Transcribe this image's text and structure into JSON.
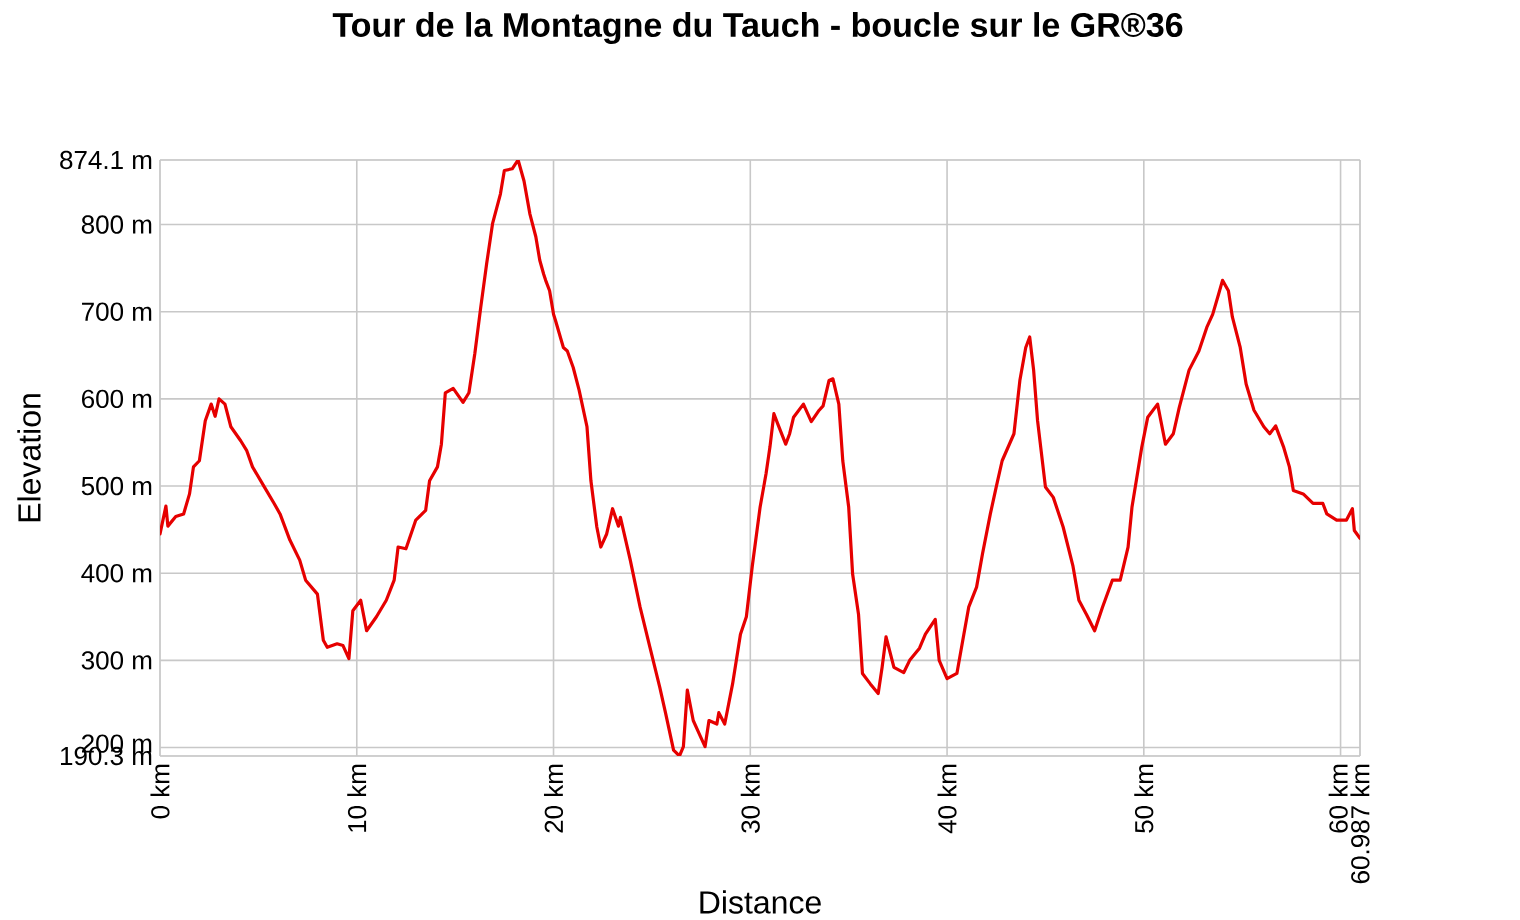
{
  "chart_data": {
    "type": "line",
    "title": "Tour de la Montagne du Tauch - boucle sur le GR®36",
    "xlabel": "Distance",
    "ylabel": "Elevation",
    "x": [
      0,
      0.3,
      0.4,
      0.8,
      1.2,
      1.5,
      1.7,
      2.0,
      2.3,
      2.6,
      2.8,
      3.0,
      3.3,
      3.6,
      4.1,
      4.4,
      4.7,
      5.3,
      5.8,
      6.1,
      6.6,
      7.1,
      7.4,
      8.0,
      8.3,
      8.5,
      9.0,
      9.3,
      9.6,
      9.8,
      10.2,
      10.5,
      11.0,
      11.5,
      11.9,
      12.1,
      12.5,
      13.0,
      13.5,
      13.7,
      14.1,
      14.3,
      14.5,
      14.9,
      15.4,
      15.7,
      16.0,
      16.3,
      16.6,
      16.9,
      17.3,
      17.5,
      17.9,
      18.2,
      18.5,
      18.8,
      19.1,
      19.3,
      19.5,
      19.6,
      19.8,
      20.0,
      20.1,
      20.5,
      20.7,
      21.0,
      21.3,
      21.7,
      21.9,
      22.2,
      22.4,
      22.7,
      23.0,
      23.3,
      23.4,
      23.9,
      24.4,
      24.9,
      25.4,
      25.7,
      26.1,
      26.4,
      26.6,
      26.8,
      27.1,
      27.4,
      27.7,
      27.9,
      28.3,
      28.4,
      28.7,
      29.1,
      29.5,
      29.8,
      30.1,
      30.5,
      30.8,
      31.0,
      31.2,
      31.4,
      31.8,
      32.0,
      32.2,
      32.7,
      33.1,
      33.5,
      33.7,
      34.0,
      34.2,
      34.5,
      34.7,
      35.0,
      35.2,
      35.5,
      35.7,
      36.1,
      36.5,
      36.7,
      36.9,
      37.3,
      37.8,
      38.1,
      38.6,
      38.9,
      39.4,
      39.6,
      40.0,
      40.5,
      40.8,
      41.1,
      41.5,
      41.8,
      42.2,
      42.5,
      42.8,
      43.4,
      43.7,
      44.0,
      44.2,
      44.4,
      44.6,
      45.0,
      45.4,
      45.9,
      46.4,
      46.7,
      47.1,
      47.5,
      47.9,
      48.4,
      48.8,
      49.2,
      49.4,
      49.9,
      50.2,
      50.7,
      51.1,
      51.5,
      51.8,
      52.3,
      52.8,
      53.2,
      53.5,
      53.8,
      54.0,
      54.3,
      54.5,
      54.9,
      55.2,
      55.6,
      56.1,
      56.4,
      56.7,
      57.1,
      57.4,
      57.6,
      58.1,
      58.6,
      59.1,
      59.3,
      59.8,
      60.3,
      60.6,
      60.7,
      60.987
    ],
    "series": [
      {
        "color": "#e60000",
        "values": [
          445,
          477,
          454,
          465,
          468,
          491,
          522,
          529,
          575,
          594,
          580,
          600,
          594,
          568,
          552,
          541,
          522,
          499,
          480,
          468,
          438,
          415,
          392,
          376,
          323,
          315,
          319,
          317,
          302,
          357,
          369,
          334,
          350,
          369,
          392,
          430,
          428,
          461,
          472,
          506,
          522,
          548,
          607,
          612,
          596,
          607,
          652,
          705,
          755,
          801,
          835,
          862,
          864,
          874.1,
          850,
          812,
          786,
          759,
          743,
          736,
          724,
          697,
          690,
          659,
          655,
          636,
          610,
          568,
          506,
          453,
          430,
          445,
          474,
          454,
          464,
          415,
          361,
          315,
          269,
          239,
          197,
          190.3,
          201,
          266,
          231,
          216,
          201,
          231,
          227,
          240,
          227,
          273,
          330,
          350,
          408,
          476,
          514,
          545,
          583,
          571,
          548,
          560,
          579,
          594,
          574,
          587,
          592,
          621,
          623,
          594,
          529,
          476,
          399,
          353,
          285,
          273,
          262,
          292,
          327,
          292,
          286,
          300,
          314,
          330,
          347,
          300,
          279,
          285,
          323,
          361,
          384,
          422,
          468,
          499,
          529,
          560,
          621,
          659,
          671,
          633,
          575,
          499,
          487,
          453,
          408,
          369,
          352,
          334,
          361,
          392,
          392,
          430,
          476,
          545,
          579,
          594,
          548,
          560,
          590,
          633,
          655,
          682,
          697,
          720,
          736,
          724,
          694,
          659,
          617,
          587,
          568,
          560,
          569,
          545,
          522,
          495,
          491,
          480,
          480,
          468,
          461,
          461,
          474,
          449,
          440
        ]
      }
    ],
    "xlim": [
      0,
      60.987
    ],
    "ylim": [
      190.3,
      874.1
    ],
    "xticks": [
      {
        "value": 0,
        "label": "0 km"
      },
      {
        "value": 10,
        "label": "10 km"
      },
      {
        "value": 20,
        "label": "20 km"
      },
      {
        "value": 30,
        "label": "30 km"
      },
      {
        "value": 40,
        "label": "40 km"
      },
      {
        "value": 50,
        "label": "50 km"
      },
      {
        "value": 60,
        "label": "60 km"
      },
      {
        "value": 60.987,
        "label": "60.987 km"
      }
    ],
    "yticks": [
      {
        "value": 190.3,
        "label": "190.3 m"
      },
      {
        "value": 200,
        "label": "200 m"
      },
      {
        "value": 300,
        "label": "300 m"
      },
      {
        "value": 400,
        "label": "400 m"
      },
      {
        "value": 500,
        "label": "500 m"
      },
      {
        "value": 600,
        "label": "600 m"
      },
      {
        "value": 700,
        "label": "700 m"
      },
      {
        "value": 800,
        "label": "800 m"
      },
      {
        "value": 874.1,
        "label": "874.1 m"
      }
    ],
    "grid": true,
    "line_style": "solid"
  }
}
